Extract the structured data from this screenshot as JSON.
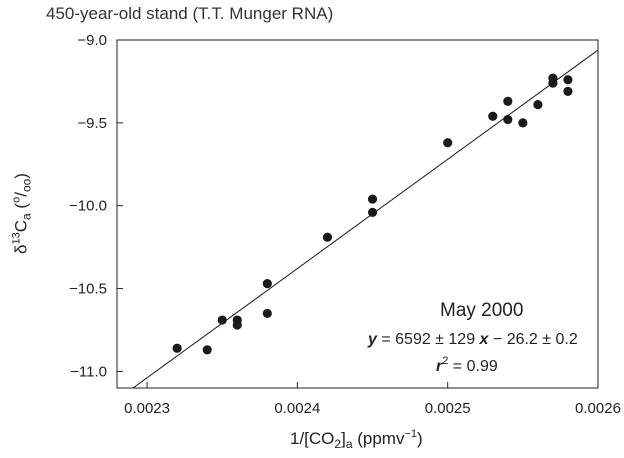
{
  "chart_data": {
    "type": "scatter",
    "title": "450-year-old stand (T.T. Munger RNA)",
    "xlabel_main": "1/[CO",
    "xlabel_sub": "2",
    "xlabel_sub2": "a",
    "xlabel_tail": " (ppmv",
    "xlabel_sup": "−1",
    "xlabel_close": ")",
    "ylabel_pre": "δ",
    "ylabel_sup": "13",
    "ylabel_mid": "C",
    "ylabel_sub": "a",
    "ylabel_tail": " (",
    "ylabel_sup2": "o",
    "ylabel_unit": "/",
    "ylabel_sub2": "oo",
    "ylabel_close": ")",
    "xlim": [
      0.00228,
      0.0026
    ],
    "ylim": [
      -11.1,
      -9.0
    ],
    "x_ticks": [
      0.0023,
      0.0024,
      0.0025,
      0.0026
    ],
    "x_tick_labels": [
      "0.0023",
      "0.0024",
      "0.0025",
      "0.0026"
    ],
    "y_ticks": [
      -9.0,
      -9.5,
      -10.0,
      -10.5,
      -11.0
    ],
    "y_tick_labels": [
      "−9.0",
      "−9.5",
      "−10.0",
      "−10.5",
      "−11.0"
    ],
    "points": [
      {
        "x": 0.00232,
        "y": -10.86
      },
      {
        "x": 0.00234,
        "y": -10.87
      },
      {
        "x": 0.00235,
        "y": -10.69
      },
      {
        "x": 0.00236,
        "y": -10.69
      },
      {
        "x": 0.00236,
        "y": -10.72
      },
      {
        "x": 0.00238,
        "y": -10.47
      },
      {
        "x": 0.00238,
        "y": -10.65
      },
      {
        "x": 0.00242,
        "y": -10.19
      },
      {
        "x": 0.00245,
        "y": -9.96
      },
      {
        "x": 0.00245,
        "y": -10.04
      },
      {
        "x": 0.0025,
        "y": -9.62
      },
      {
        "x": 0.00253,
        "y": -9.46
      },
      {
        "x": 0.00254,
        "y": -9.37
      },
      {
        "x": 0.00254,
        "y": -9.48
      },
      {
        "x": 0.00255,
        "y": -9.5
      },
      {
        "x": 0.00256,
        "y": -9.39
      },
      {
        "x": 0.00257,
        "y": -9.23
      },
      {
        "x": 0.00257,
        "y": -9.26
      },
      {
        "x": 0.00258,
        "y": -9.24
      },
      {
        "x": 0.00258,
        "y": -9.31
      }
    ],
    "fit": {
      "slope": 6592,
      "intercept": -26.2
    },
    "annotation": {
      "title": "May 2000",
      "eq_y": "y",
      "eq_body": " = 6592 ± 129 ",
      "eq_x": "x",
      "eq_tail": " − 26.2 ± 0.2",
      "r2_r": "r",
      "r2_sup": "2",
      "r2_tail": " = 0.99"
    },
    "grid": false,
    "colors": {
      "marker": "#1a1a1a",
      "line": "#1a1a1a",
      "axis": "#222222"
    }
  }
}
